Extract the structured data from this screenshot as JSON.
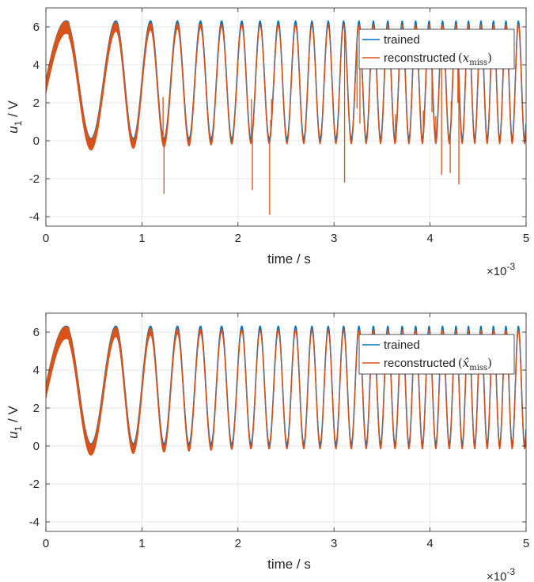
{
  "chart_data": [
    {
      "type": "line",
      "xlabel": "time / s",
      "ylabel_main": "u",
      "ylabel_sub": "1",
      "ylabel_unit": " / V",
      "x_exponent_base": "×10",
      "x_exponent_power": "-3",
      "xlim": [
        0,
        5
      ],
      "ylim": [
        -4.5,
        7
      ],
      "xticks": [
        0,
        1,
        2,
        3,
        4,
        5
      ],
      "xtick_labels": [
        "0",
        "1",
        "2",
        "3",
        "4",
        "5"
      ],
      "yticks": [
        -4,
        -2,
        0,
        2,
        4,
        6
      ],
      "ytick_labels": [
        "-4",
        "-2",
        "0",
        "2",
        "4",
        "6"
      ],
      "grid": true,
      "legend_position": "top-right",
      "signal": {
        "offset": 3.0,
        "amplitude": 3.1,
        "phase_t_ms": [
          0.0,
          0.24
        ],
        "phase_k": 1.45,
        "phase_p": 1.18,
        "crests_ms": [
          0.21,
          0.73,
          1.09,
          1.37,
          1.61,
          1.83,
          2.04,
          2.23,
          2.42,
          2.6,
          2.77,
          2.94,
          3.1,
          3.26,
          3.41,
          3.56,
          3.71,
          3.85,
          3.99,
          4.13,
          4.27,
          4.4,
          4.53,
          4.66,
          4.79,
          4.92
        ]
      },
      "series": [
        {
          "name": "trained",
          "color": "#0072BD",
          "band_upper": 0.28,
          "band_lower": 0.0
        },
        {
          "name": "reconstructed",
          "name_math_base": "x",
          "name_math_sub": "miss",
          "name_math_hat": false,
          "color": "#D95319",
          "band_upper_start": 0.75,
          "band_lower_start": 0.85,
          "spikes": [
            {
              "t_ms": 1.22,
              "y": 2.3
            },
            {
              "t_ms": 1.23,
              "y": -2.8
            },
            {
              "t_ms": 2.14,
              "y": 2.2
            },
            {
              "t_ms": 2.15,
              "y": -2.6
            },
            {
              "t_ms": 2.33,
              "y": -3.9
            },
            {
              "t_ms": 2.34,
              "y": 1.1
            },
            {
              "t_ms": 2.35,
              "y": 2.2
            },
            {
              "t_ms": 3.11,
              "y": -2.2
            },
            {
              "t_ms": 3.24,
              "y": 1.7
            },
            {
              "t_ms": 3.27,
              "y": 0.9
            },
            {
              "t_ms": 3.64,
              "y": 1.4
            },
            {
              "t_ms": 3.93,
              "y": 1.6
            },
            {
              "t_ms": 4.02,
              "y": 1.5
            },
            {
              "t_ms": 4.06,
              "y": 1.3
            },
            {
              "t_ms": 4.12,
              "y": -1.8
            },
            {
              "t_ms": 4.21,
              "y": -1.7
            },
            {
              "t_ms": 4.22,
              "y": 2.1
            },
            {
              "t_ms": 4.29,
              "y": 2.0
            },
            {
              "t_ms": 4.3,
              "y": -2.3
            }
          ]
        }
      ]
    },
    {
      "type": "line",
      "xlabel": "time / s",
      "ylabel_main": "u",
      "ylabel_sub": "1",
      "ylabel_unit": " / V",
      "x_exponent_base": "×10",
      "x_exponent_power": "-3",
      "xlim": [
        0,
        5
      ],
      "ylim": [
        -4.5,
        7
      ],
      "xticks": [
        0,
        1,
        2,
        3,
        4,
        5
      ],
      "xtick_labels": [
        "0",
        "1",
        "2",
        "3",
        "4",
        "5"
      ],
      "yticks": [
        -4,
        -2,
        0,
        2,
        4,
        6
      ],
      "ytick_labels": [
        "-4",
        "-2",
        "0",
        "2",
        "4",
        "6"
      ],
      "grid": true,
      "legend_position": "top-right",
      "signal": {
        "offset": 3.0,
        "amplitude": 3.1,
        "phase_t_ms": [
          0.0,
          0.24
        ],
        "phase_k": 1.45,
        "phase_p": 1.18,
        "crests_ms": [
          0.21,
          0.73,
          1.09,
          1.37,
          1.61,
          1.83,
          2.04,
          2.23,
          2.42,
          2.6,
          2.77,
          2.94,
          3.1,
          3.26,
          3.41,
          3.56,
          3.71,
          3.85,
          3.99,
          4.13,
          4.27,
          4.4,
          4.53,
          4.66,
          4.79,
          4.92
        ]
      },
      "series": [
        {
          "name": "trained",
          "color": "#0072BD",
          "band_upper": 0.28,
          "band_lower": 0.0
        },
        {
          "name": "reconstructed",
          "name_math_base": "x",
          "name_math_sub": "miss",
          "name_math_hat": true,
          "color": "#D95319",
          "band_upper_start": 0.75,
          "band_lower_start": 0.85,
          "spikes": []
        }
      ]
    }
  ]
}
